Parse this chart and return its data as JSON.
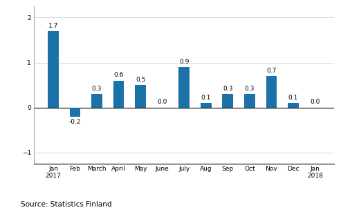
{
  "categories": [
    "Jan\n2017",
    "Feb",
    "March",
    "April",
    "May",
    "June",
    "July",
    "Aug",
    "Sep",
    "Oct",
    "Nov",
    "Dec",
    "Jan\n2018"
  ],
  "values": [
    1.7,
    -0.2,
    0.3,
    0.6,
    0.5,
    0.0,
    0.9,
    0.1,
    0.3,
    0.3,
    0.7,
    0.1,
    0.0
  ],
  "bar_color": "#1a72a8",
  "ylim": [
    -1.25,
    2.25
  ],
  "yticks": [
    -1,
    0,
    1,
    2
  ],
  "source_text": "Source: Statistics Finland",
  "label_fontsize": 6.5,
  "tick_fontsize": 6.5,
  "source_fontsize": 7.5,
  "bar_width": 0.5
}
